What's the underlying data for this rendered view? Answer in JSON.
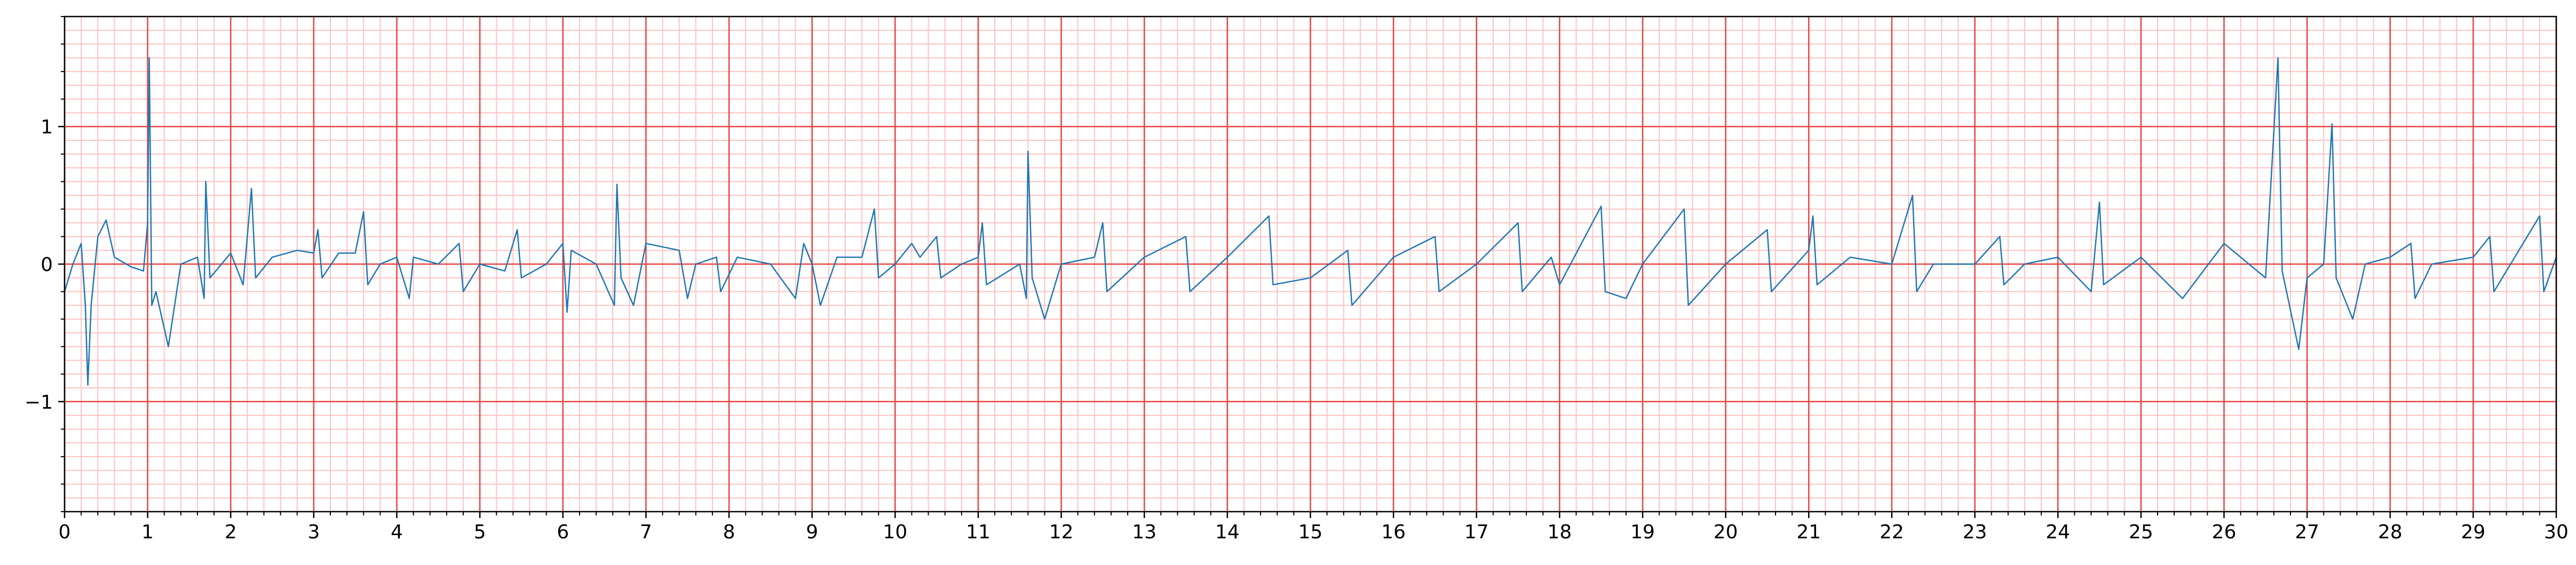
{
  "chart_data": {
    "type": "line",
    "color": "#1f77b4",
    "x": [
      0,
      0.1,
      0.2,
      0.25,
      0.28,
      0.32,
      0.4,
      0.5,
      0.6,
      0.8,
      0.95,
      1.0,
      1.02,
      1.05,
      1.1,
      1.25,
      1.4,
      1.6,
      1.68,
      1.7,
      1.75,
      2.0,
      2.15,
      2.25,
      2.3,
      2.5,
      2.8,
      3.0,
      3.05,
      3.1,
      3.3,
      3.5,
      3.6,
      3.65,
      3.8,
      4.0,
      4.15,
      4.2,
      4.5,
      4.75,
      4.8,
      5.0,
      5.3,
      5.45,
      5.5,
      5.8,
      6.0,
      6.05,
      6.1,
      6.4,
      6.62,
      6.65,
      6.7,
      6.85,
      7.0,
      7.4,
      7.5,
      7.6,
      7.85,
      7.9,
      8.1,
      8.5,
      8.8,
      8.9,
      9.0,
      9.1,
      9.3,
      9.6,
      9.75,
      9.8,
      10.0,
      10.2,
      10.3,
      10.5,
      10.55,
      10.8,
      11.0,
      11.05,
      11.1,
      11.5,
      11.58,
      11.6,
      11.65,
      11.8,
      12.0,
      12.4,
      12.5,
      12.55,
      13.0,
      13.5,
      13.55,
      14.0,
      14.5,
      14.55,
      15.0,
      15.45,
      15.5,
      16.0,
      16.5,
      16.55,
      17.0,
      17.5,
      17.55,
      17.9,
      18.0,
      18.5,
      18.55,
      18.8,
      19.0,
      19.5,
      19.55,
      20.0,
      20.5,
      20.55,
      21.0,
      21.05,
      21.1,
      21.5,
      22.0,
      22.25,
      22.3,
      22.5,
      23.0,
      23.3,
      23.35,
      23.6,
      24.0,
      24.4,
      24.5,
      24.55,
      25.0,
      25.5,
      26.0,
      26.5,
      26.65,
      26.7,
      26.9,
      27.0,
      27.2,
      27.3,
      27.35,
      27.55,
      27.7,
      28.0,
      28.25,
      28.3,
      28.5,
      29.0,
      29.2,
      29.25,
      29.5,
      29.8,
      29.85,
      30.0
    ],
    "values": [
      -0.2,
      0,
      0.15,
      -0.3,
      -0.88,
      -0.3,
      0.2,
      0.32,
      0.05,
      -0.02,
      -0.05,
      0.3,
      1.5,
      -0.3,
      -0.2,
      -0.6,
      0,
      0.05,
      -0.25,
      0.6,
      -0.1,
      0.08,
      -0.15,
      0.55,
      -0.1,
      0.05,
      0.1,
      0.08,
      0.25,
      -0.1,
      0.08,
      0.08,
      0.38,
      -0.15,
      0,
      0.05,
      -0.25,
      0.05,
      0,
      0.15,
      -0.2,
      0,
      -0.05,
      0.25,
      -0.1,
      0,
      0.15,
      -0.35,
      0.1,
      0,
      -0.3,
      0.58,
      -0.1,
      -0.3,
      0.15,
      0.1,
      -0.25,
      0,
      0.05,
      -0.2,
      0.05,
      0,
      -0.25,
      0.15,
      0,
      -0.3,
      0.05,
      0.05,
      0.4,
      -0.1,
      0,
      0.15,
      0.05,
      0.2,
      -0.1,
      0,
      0.05,
      0.3,
      -0.15,
      0,
      -0.25,
      0.82,
      -0.1,
      -0.4,
      0,
      0.05,
      0.3,
      -0.2,
      0.05,
      0.2,
      -0.2,
      0.05,
      0.35,
      -0.15,
      -0.1,
      0.1,
      -0.3,
      0.05,
      0.2,
      -0.2,
      0,
      0.3,
      -0.2,
      0.05,
      -0.15,
      0.42,
      -0.2,
      -0.25,
      0,
      0.4,
      -0.3,
      0,
      0.25,
      -0.2,
      0.1,
      0.35,
      -0.15,
      0.05,
      0,
      0.5,
      -0.2,
      0,
      0,
      0.2,
      -0.15,
      0,
      0.05,
      -0.2,
      0.45,
      -0.15,
      0.05,
      -0.25,
      0.15,
      -0.1,
      1.5,
      -0.05,
      -0.62,
      -0.1,
      0,
      1.02,
      -0.1,
      -0.4,
      0,
      0.05,
      0.15,
      -0.25,
      0,
      0.05,
      0.2,
      -0.2,
      0.05,
      0.35,
      -0.2,
      0.05
    ],
    "xlim": [
      0,
      30
    ],
    "xticks": [
      0,
      1,
      2,
      3,
      4,
      5,
      6,
      7,
      8,
      9,
      10,
      11,
      12,
      13,
      14,
      15,
      16,
      17,
      18,
      19,
      20,
      21,
      22,
      23,
      24,
      25,
      26,
      27,
      28,
      29,
      30
    ],
    "ylim": [
      -1.8,
      1.8
    ],
    "yticks": [
      {
        "value": -1,
        "label": "−1"
      },
      0,
      1
    ],
    "grid": true,
    "grid_color": "#e8423f",
    "minor_grid_color": "#ffc2c2",
    "x_minor_step": 0.2,
    "y_minor_step": 0.1
  }
}
